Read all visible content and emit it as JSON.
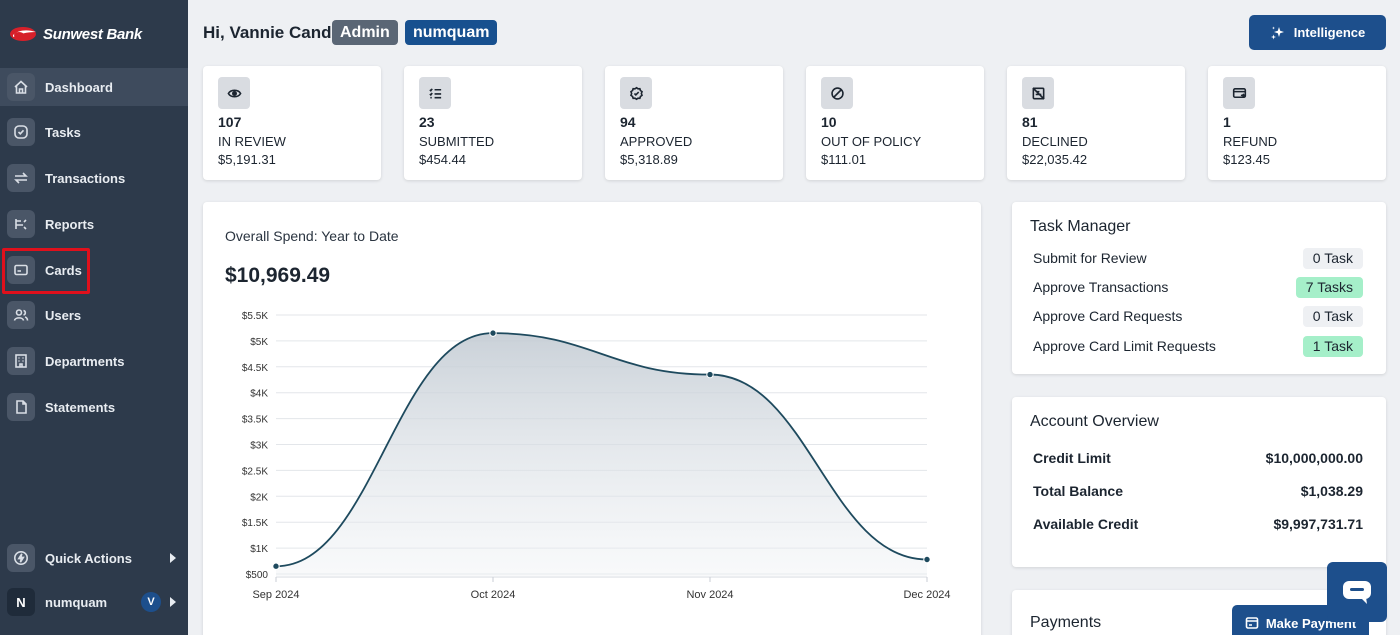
{
  "brand": {
    "name": "Sunwest Bank",
    "logo_color": "#d6202a"
  },
  "sidebar": {
    "items": [
      {
        "label": "Dashboard",
        "icon": "home-icon",
        "active": true
      },
      {
        "label": "Tasks",
        "icon": "check-circle-icon"
      },
      {
        "label": "Transactions",
        "icon": "swap-arrows-icon"
      },
      {
        "label": "Reports",
        "icon": "reports-icon"
      },
      {
        "label": "Cards",
        "icon": "card-icon"
      },
      {
        "label": "Users",
        "icon": "users-icon"
      },
      {
        "label": "Departments",
        "icon": "building-icon"
      },
      {
        "label": "Statements",
        "icon": "document-icon"
      }
    ],
    "quick_actions": {
      "label": "Quick Actions",
      "icon": "lightning-icon"
    },
    "user": {
      "initial": "N",
      "name": "numquam",
      "badge": "V"
    }
  },
  "header": {
    "greeting": "Hi, Vannie Cand",
    "role_badge": "Admin",
    "user_badge": "numquam",
    "intelligence_label": "Intelligence"
  },
  "stats": [
    {
      "count": "107",
      "label": "IN REVIEW",
      "amount": "$5,191.31",
      "icon": "eye-icon"
    },
    {
      "count": "23",
      "label": "SUBMITTED",
      "amount": "$454.44",
      "icon": "list-check-icon"
    },
    {
      "count": "94",
      "label": "APPROVED",
      "amount": "$5,318.89",
      "icon": "badge-check-icon"
    },
    {
      "count": "10",
      "label": "OUT OF POLICY",
      "amount": "$111.01",
      "icon": "ban-icon"
    },
    {
      "count": "81",
      "label": "DECLINED",
      "amount": "$22,035.42",
      "icon": "declined-icon"
    },
    {
      "count": "1",
      "label": "REFUND",
      "amount": "$123.45",
      "icon": "refund-icon"
    }
  ],
  "spend": {
    "title": "Overall Spend: Year to Date",
    "total": "$10,969.49"
  },
  "chart_data": {
    "type": "area",
    "title": "Overall Spend: Year to Date",
    "categories": [
      "Sep 2024",
      "Oct 2024",
      "Nov 2024",
      "Dec 2024"
    ],
    "values": [
      650,
      5150,
      4350,
      780
    ],
    "y_ticks": [
      "$500",
      "$1K",
      "$1.5K",
      "$2K",
      "$2.5K",
      "$3K",
      "$3.5K",
      "$4K",
      "$4.5K",
      "$5K",
      "$5.5K"
    ],
    "y_tick_values": [
      500,
      1000,
      1500,
      2000,
      2500,
      3000,
      3500,
      4000,
      4500,
      5000,
      5500
    ],
    "ylim": [
      500,
      5500
    ],
    "grid": true,
    "line_color": "#1e4a5e",
    "xlabel": "",
    "ylabel": ""
  },
  "task_manager": {
    "title": "Task Manager",
    "tasks": [
      {
        "name": "Submit for Review",
        "count": "0 Task",
        "positive": false
      },
      {
        "name": "Approve Transactions",
        "count": "7 Tasks",
        "positive": true
      },
      {
        "name": "Approve Card Requests",
        "count": "0 Task",
        "positive": false
      },
      {
        "name": "Approve Card Limit Requests",
        "count": "1 Task",
        "positive": true
      }
    ]
  },
  "account_overview": {
    "title": "Account Overview",
    "rows": [
      {
        "label": "Credit Limit",
        "value": "$10,000,000.00"
      },
      {
        "label": "Total Balance",
        "value": "$1,038.29"
      },
      {
        "label": "Available Credit",
        "value": "$9,997,731.71"
      }
    ]
  },
  "payments": {
    "title": "Payments",
    "make_payment_label": "Make Payment"
  },
  "chat": {
    "icon": "chat-icon"
  }
}
